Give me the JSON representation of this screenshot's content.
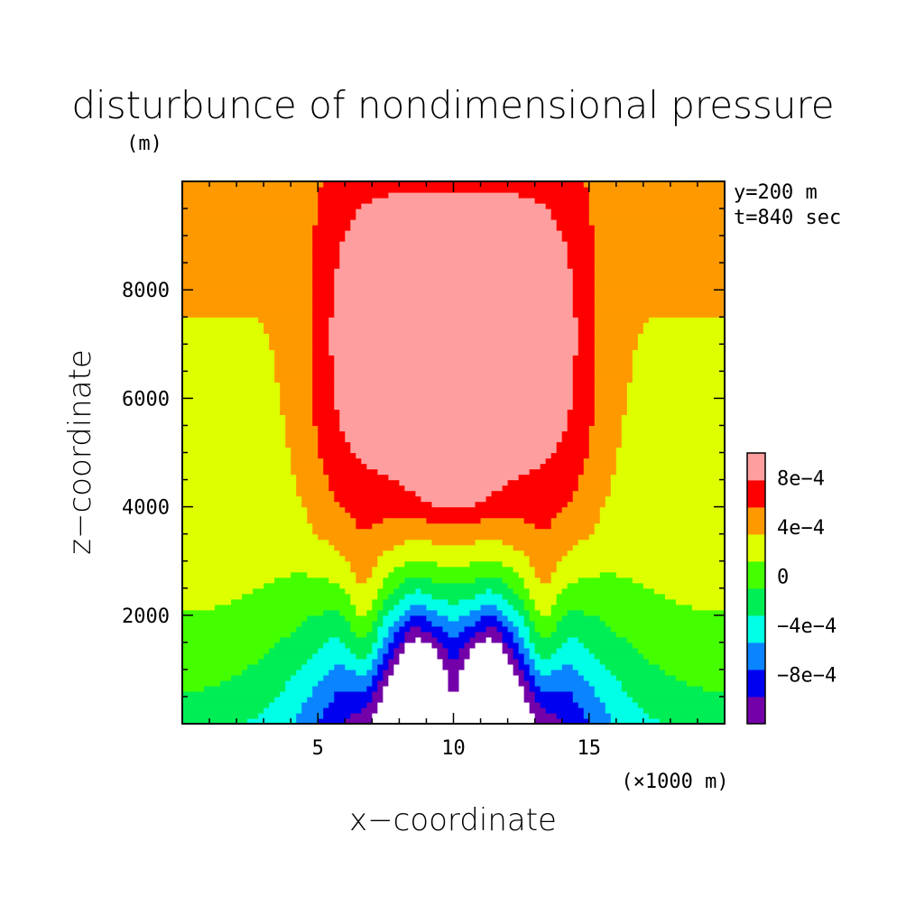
{
  "chart_data": {
    "type": "heatmap",
    "title": "disturbunce of nondimensional pressure",
    "ylabel": "z−coordinate",
    "ylabel_unit": "(m)",
    "xlabel": "x−coordinate",
    "xlabel_unit": "(×1000 m)",
    "annotations": [
      "y=200 m",
      "t=840 sec"
    ],
    "xlim": [
      0,
      20
    ],
    "ylim": [
      0,
      10000
    ],
    "x_ticks": [
      {
        "value": 5,
        "label": "5"
      },
      {
        "value": 10,
        "label": "10"
      },
      {
        "value": 15,
        "label": "15"
      }
    ],
    "y_ticks": [
      {
        "value": 2000,
        "label": "2000"
      },
      {
        "value": 4000,
        "label": "4000"
      },
      {
        "value": 6000,
        "label": "6000"
      },
      {
        "value": 8000,
        "label": "8000"
      }
    ],
    "colorbar": {
      "levels": [
        -0.0012,
        -0.001,
        -0.0008,
        -0.0006,
        -0.0004,
        -0.0002,
        0,
        0.0002,
        0.0004,
        0.0006,
        0.0008,
        0.001
      ],
      "colors": [
        "#7300a8",
        "#0000f0",
        "#0a84ff",
        "#00ffe6",
        "#00ee55",
        "#44ff00",
        "#ddff00",
        "#ff9900",
        "#ff0000",
        "#ff9e9e"
      ],
      "tick_labels": [
        {
          "value": -0.0008,
          "label": "−8e−4"
        },
        {
          "value": -0.0004,
          "label": "−4e−4"
        },
        {
          "value": 0,
          "label": "0"
        },
        {
          "value": 0.0004,
          "label": "4e−4"
        },
        {
          "value": 0.0008,
          "label": "8e−4"
        }
      ]
    },
    "colors": {
      "below_min": "#ffffff"
    }
  }
}
